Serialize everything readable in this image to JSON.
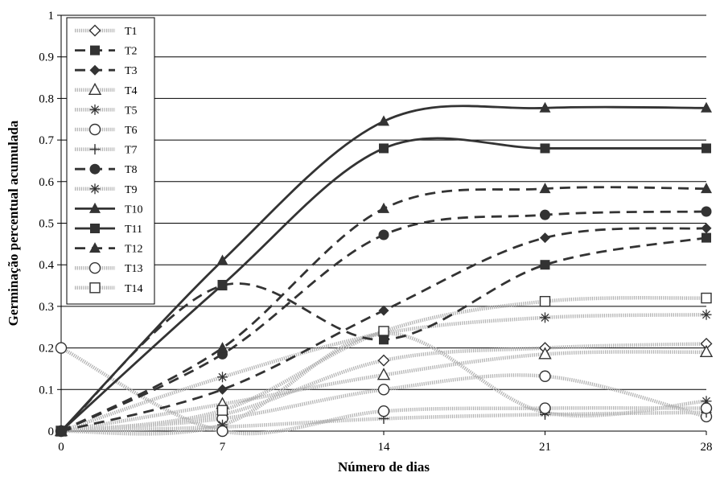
{
  "chart_data": {
    "type": "line",
    "xlabel": "Número de dias",
    "ylabel": "Germinação percentual acumulada",
    "x": [
      0,
      7,
      14,
      21,
      28
    ],
    "x_ticks": [
      0,
      7,
      14,
      21,
      28
    ],
    "x_tick_labels": [
      "0",
      "7",
      "14",
      "21",
      "28"
    ],
    "xlim": [
      0,
      28
    ],
    "y_ticks": [
      0,
      0.1,
      0.2,
      0.3,
      0.4,
      0.5,
      0.6,
      0.7,
      0.8,
      0.9,
      1
    ],
    "y_tick_labels": [
      "0",
      "0.1",
      "0.2",
      "0.3",
      "0.4",
      "0.5",
      "0.6",
      "0.7",
      "0.8",
      "0.9",
      "1"
    ],
    "ylim": [
      0,
      1
    ],
    "grid": "horizontal",
    "legend_position": "top-left",
    "series": [
      {
        "name": "T1",
        "values": [
          0,
          0.04,
          0.17,
          0.2,
          0.21
        ],
        "marker": "diamond-open",
        "line": "gray-dotted",
        "color": "#aaaaaa"
      },
      {
        "name": "T2",
        "values": [
          0,
          0.35,
          0.22,
          0.4,
          0.465
        ],
        "marker": "square-filled",
        "line": "black-dashed",
        "color": "#333333"
      },
      {
        "name": "T3",
        "values": [
          0,
          0.1,
          0.29,
          0.465,
          0.488
        ],
        "marker": "diamond-filled",
        "line": "black-dashed",
        "color": "#333333"
      },
      {
        "name": "T4",
        "values": [
          0,
          0.065,
          0.135,
          0.185,
          0.19
        ],
        "marker": "triangle-open",
        "line": "gray-dotted",
        "color": "#aaaaaa"
      },
      {
        "name": "T5",
        "values": [
          0,
          0.13,
          0.235,
          0.273,
          0.28
        ],
        "marker": "asterisk",
        "line": "gray-dotted",
        "color": "#aaaaaa"
      },
      {
        "name": "T6",
        "values": [
          0,
          0.03,
          0.1,
          0.132,
          0.035
        ],
        "marker": "circle-open",
        "line": "gray-dotted",
        "color": "#aaaaaa"
      },
      {
        "name": "T7",
        "values": [
          0,
          0.01,
          0.03,
          0.04,
          0.045
        ],
        "marker": "plus",
        "line": "gray-dotted",
        "color": "#aaaaaa"
      },
      {
        "name": "T8",
        "values": [
          0,
          0.185,
          0.472,
          0.52,
          0.528
        ],
        "marker": "circle-filled",
        "line": "black-dashed",
        "color": "#333333"
      },
      {
        "name": "T9",
        "values": [
          0,
          0.015,
          0.235,
          0.045,
          0.072
        ],
        "marker": "asterisk",
        "line": "gray-dotted",
        "color": "#aaaaaa"
      },
      {
        "name": "T10",
        "values": [
          0,
          0.41,
          0.745,
          0.777,
          0.777
        ],
        "marker": "triangle-filled",
        "line": "black-solid",
        "color": "#333333"
      },
      {
        "name": "T11",
        "values": [
          0,
          0.352,
          0.68,
          0.68,
          0.68
        ],
        "marker": "square-filled",
        "line": "black-solid",
        "color": "#333333"
      },
      {
        "name": "T12",
        "values": [
          0,
          0.2,
          0.535,
          0.583,
          0.583
        ],
        "marker": "triangle-filled",
        "line": "black-dashed",
        "color": "#333333"
      },
      {
        "name": "T13",
        "values": [
          0.2,
          0,
          0.048,
          0.055,
          0.055
        ],
        "marker": "circle-open",
        "line": "gray-dotted",
        "color": "#aaaaaa"
      },
      {
        "name": "T14",
        "values": [
          0,
          0.05,
          0.24,
          0.312,
          0.32
        ],
        "marker": "square-open",
        "line": "gray-dotted",
        "color": "#aaaaaa"
      }
    ]
  }
}
